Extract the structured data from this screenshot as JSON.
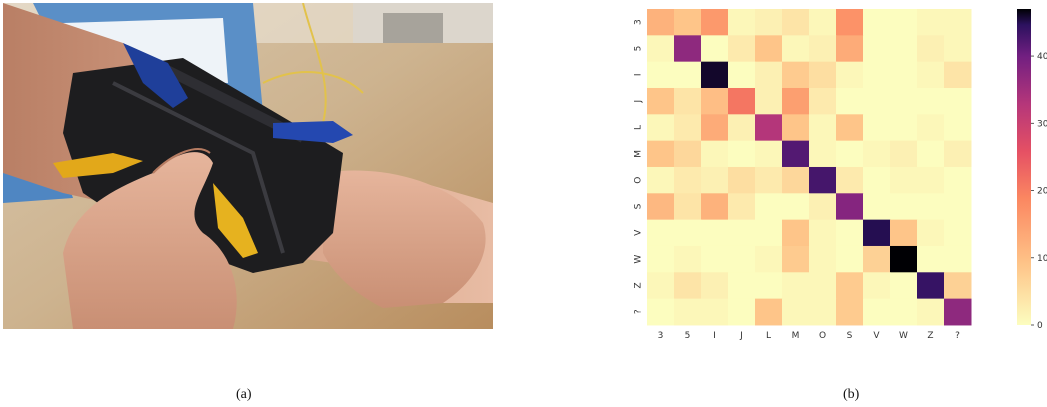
{
  "figure": {
    "left_panel": {
      "caption": "(a)",
      "image_subject": "photo of a wrist band with alligator-clip electrodes on a forearm"
    },
    "right_panel": {
      "caption": "(b)"
    }
  },
  "chart_data": {
    "type": "heatmap",
    "title": "",
    "xlabel": "",
    "ylabel": "",
    "x_categories": [
      "3",
      "5",
      "I",
      "J",
      "L",
      "M",
      "O",
      "S",
      "V",
      "W",
      "Z",
      "?"
    ],
    "y_categories": [
      "3",
      "5",
      "I",
      "J",
      "L",
      "M",
      "O",
      "S",
      "V",
      "W",
      "Z",
      "?"
    ],
    "values": [
      [
        12,
        9,
        16,
        1,
        2,
        4,
        1,
        17,
        0,
        0,
        1,
        1
      ],
      [
        1,
        37,
        0,
        3,
        9,
        1,
        2,
        13,
        0,
        0,
        2,
        1
      ],
      [
        0,
        0,
        46,
        0,
        2,
        8,
        5,
        1,
        0,
        0,
        1,
        4
      ],
      [
        9,
        4,
        10,
        21,
        2,
        15,
        3,
        0,
        0,
        0,
        0,
        0
      ],
      [
        1,
        3,
        13,
        2,
        33,
        9,
        1,
        9,
        0,
        0,
        1,
        0
      ],
      [
        9,
        6,
        1,
        0,
        1,
        42,
        1,
        0,
        1,
        2,
        0,
        2
      ],
      [
        1,
        3,
        2,
        5,
        3,
        6,
        43,
        3,
        0,
        1,
        1,
        0
      ],
      [
        11,
        4,
        12,
        3,
        0,
        0,
        2,
        38,
        0,
        0,
        0,
        0
      ],
      [
        0,
        0,
        0,
        0,
        0,
        9,
        1,
        0,
        45,
        9,
        1,
        0
      ],
      [
        0,
        1,
        0,
        0,
        1,
        8,
        1,
        0,
        7,
        47,
        0,
        0
      ],
      [
        1,
        4,
        2,
        0,
        0,
        1,
        1,
        8,
        1,
        0,
        44,
        7
      ],
      [
        0,
        1,
        1,
        0,
        9,
        1,
        1,
        8,
        0,
        0,
        1,
        37
      ]
    ],
    "colorbar": {
      "colormap": "magma_r",
      "min": 0,
      "max": 47,
      "ticks": [
        "0",
        "10",
        "20",
        "30",
        "40"
      ],
      "tick_values": [
        0,
        10,
        20,
        30,
        40
      ]
    },
    "grid": false
  }
}
